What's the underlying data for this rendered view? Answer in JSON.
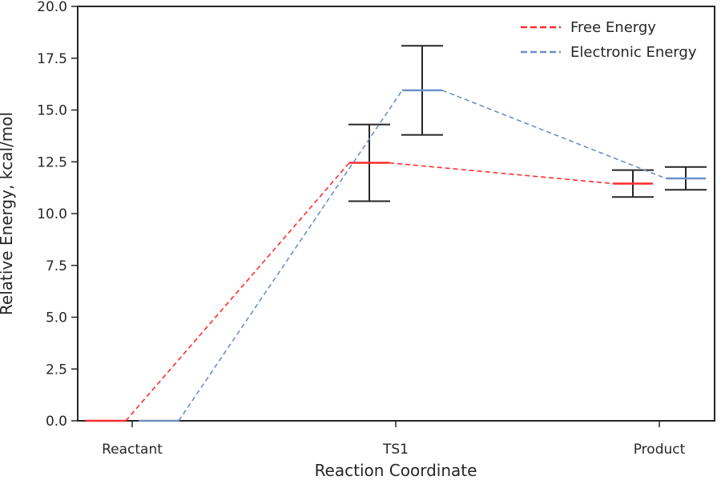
{
  "chart_data": {
    "type": "line",
    "title": "",
    "xlabel": "Reaction Coordinate",
    "ylabel": "Relative Energy, kcal/mol",
    "categories": [
      "Reactant",
      "TS1",
      "Product"
    ],
    "ylim": [
      0,
      20
    ],
    "yticks": [
      "0.0",
      "2.5",
      "5.0",
      "7.5",
      "10.0",
      "12.5",
      "15.0",
      "17.5",
      "20.0"
    ],
    "grid": false,
    "legend_position": "top-right",
    "series": [
      {
        "name": "Free Energy",
        "color": "#ff2b2b",
        "values": [
          0.0,
          12.45,
          11.45
        ],
        "errors": [
          0,
          1.85,
          0.65
        ]
      },
      {
        "name": "Electronic Energy",
        "color": "#6f8fc7",
        "values": [
          0.0,
          15.95,
          11.7
        ],
        "errors": [
          0,
          2.15,
          0.55
        ]
      }
    ]
  }
}
